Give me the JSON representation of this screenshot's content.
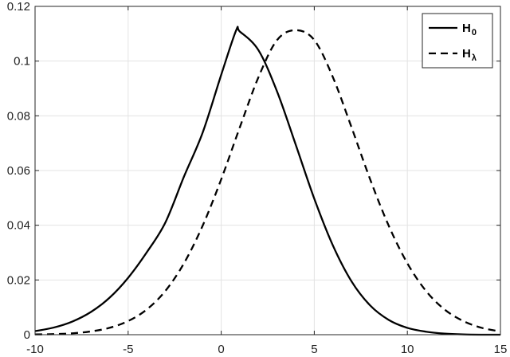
{
  "chart_data": {
    "type": "line",
    "title": "",
    "xlabel": "",
    "ylabel": "",
    "xlim": [
      -10,
      15
    ],
    "ylim": [
      0,
      0.12
    ],
    "x_ticks": [
      -10,
      -5,
      0,
      5,
      10,
      15
    ],
    "x_tick_labels": [
      "-10",
      "-5",
      "0",
      "5",
      "10",
      "15"
    ],
    "y_ticks": [
      0,
      0.02,
      0.04,
      0.06,
      0.08,
      0.1,
      0.12
    ],
    "y_tick_labels": [
      "0",
      "0.02",
      "0.04",
      "0.06",
      "0.08",
      "0.1",
      "0.12"
    ],
    "grid": true,
    "legend_position": "top-right",
    "series": [
      {
        "name": "H",
        "subscript": "0",
        "line_style": "solid",
        "color": "#000000",
        "x": [
          -10,
          -9,
          -8,
          -7,
          -6,
          -5,
          -4,
          -3,
          -2,
          -1,
          0,
          0.8,
          1,
          2,
          3,
          4,
          5,
          6,
          7,
          8,
          9,
          10,
          11,
          12,
          13,
          14,
          15
        ],
        "y": [
          0.0013,
          0.0026,
          0.0048,
          0.0083,
          0.0135,
          0.0208,
          0.0301,
          0.041,
          0.0578,
          0.0738,
          0.095,
          0.1112,
          0.1108,
          0.104,
          0.0889,
          0.0695,
          0.0497,
          0.0326,
          0.0195,
          0.0107,
          0.0054,
          0.0025,
          0.0011,
          0.0004,
          0.0001,
          0.0,
          0.0
        ]
      },
      {
        "name": "H",
        "subscript": "λ",
        "line_style": "dashed",
        "color": "#000000",
        "x": [
          -10,
          -9,
          -8,
          -7,
          -6,
          -5,
          -4,
          -3,
          -2,
          -1,
          0,
          1,
          2,
          3,
          4,
          5,
          6,
          7,
          8,
          9,
          10,
          11,
          12,
          13,
          14,
          15
        ],
        "y": [
          0.0001,
          0.0002,
          0.0005,
          0.0012,
          0.0025,
          0.005,
          0.0092,
          0.016,
          0.0261,
          0.0398,
          0.0568,
          0.0758,
          0.0941,
          0.1077,
          0.1113,
          0.1077,
          0.0941,
          0.0758,
          0.0568,
          0.0398,
          0.0261,
          0.016,
          0.0092,
          0.005,
          0.0025,
          0.0012
        ]
      }
    ]
  }
}
